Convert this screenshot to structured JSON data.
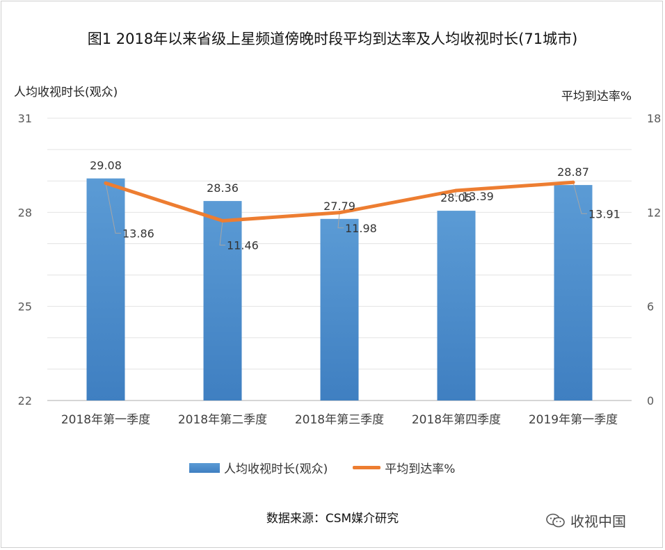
{
  "chart_data": {
    "type": "bar+line",
    "title": "图1  2018年以来省级上星频道傍晚时段平均到达率及人均收视时长(71城市)",
    "categories": [
      "2018年第一季度",
      "2018年第二季度",
      "2018年第三季度",
      "2018年第四季度",
      "2019年第一季度"
    ],
    "series": [
      {
        "name": "人均收视时长(观众)",
        "type": "bar",
        "axis": "left",
        "values": [
          29.08,
          28.36,
          27.79,
          28.05,
          28.87
        ],
        "labels": [
          "29.08",
          "28.36",
          "27.79",
          "28.05",
          "28.87"
        ]
      },
      {
        "name": "平均到达率%",
        "type": "line",
        "axis": "right",
        "values": [
          13.86,
          11.46,
          11.98,
          13.39,
          13.91
        ],
        "labels": [
          "13.86",
          "11.46",
          "11.98",
          "13.39",
          "13.91"
        ]
      }
    ],
    "y_left": {
      "label": "人均收视时长(观众)",
      "range": [
        22,
        31
      ],
      "ticks": [
        "22",
        "25",
        "28",
        "31"
      ]
    },
    "y_right": {
      "label": "平均到达率%",
      "range": [
        0,
        18
      ],
      "ticks": [
        "0",
        "6",
        "12",
        "18"
      ]
    },
    "gridlines": true,
    "legend": [
      "人均收视时长(观众)",
      "平均到达率%"
    ],
    "colors": {
      "bar": "#5b9bd5",
      "bar_dark": "#3f7fc1",
      "line": "#ed7d31"
    }
  },
  "source_note": "数据来源：CSM媒介研究",
  "watermark": "收视中国"
}
